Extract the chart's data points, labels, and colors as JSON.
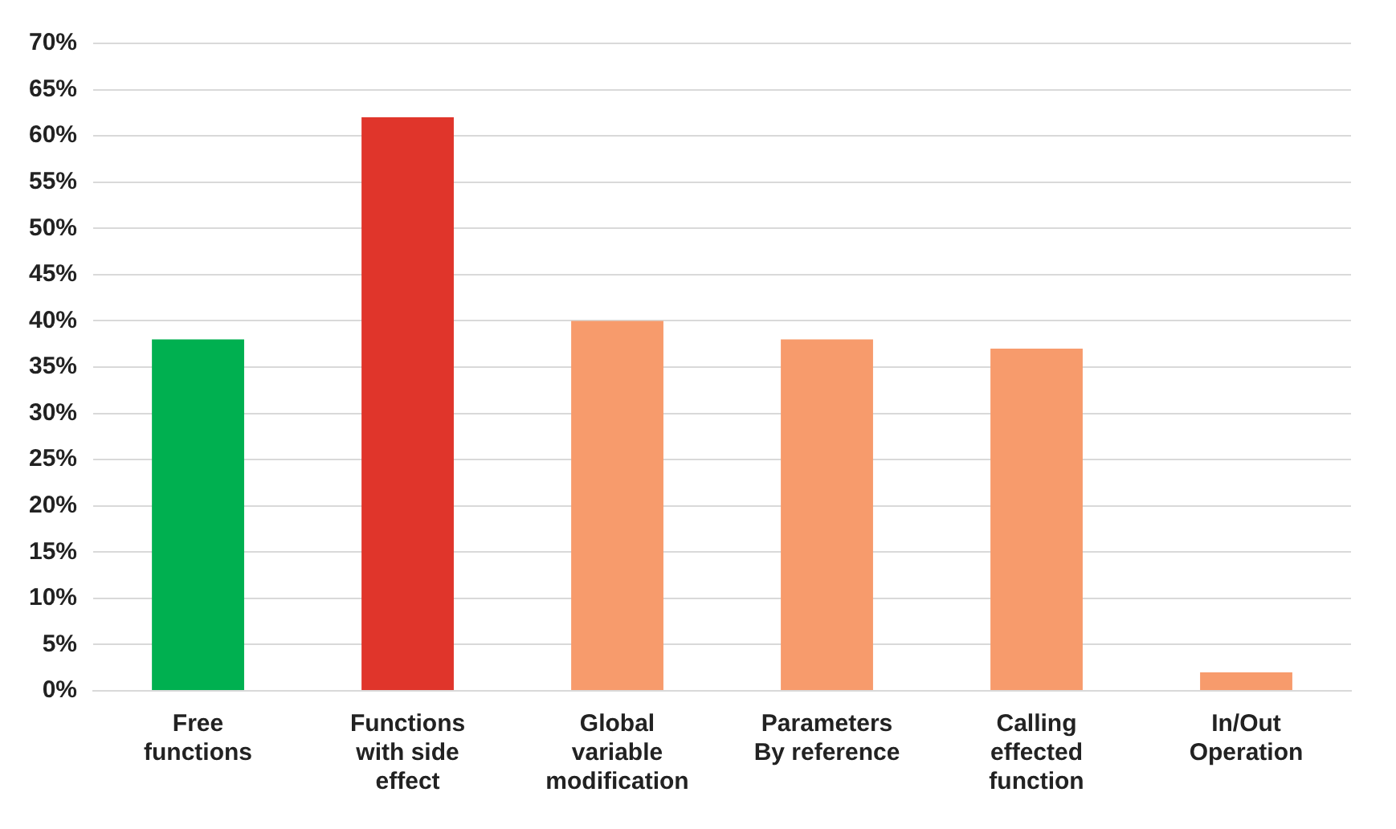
{
  "chart_data": {
    "type": "bar",
    "categories": [
      "Free functions",
      "Functions with side effect",
      "Global variable modification",
      "Parameters By reference",
      "Calling effected function",
      "In/Out Operation"
    ],
    "values": [
      38,
      62,
      40,
      38,
      37,
      2
    ],
    "colors": [
      "#00b050",
      "#e0352b",
      "#f79b6c",
      "#f79b6c",
      "#f79b6c",
      "#f79b6c"
    ],
    "ylim": [
      0,
      70
    ],
    "yticks": [
      {
        "value": 0,
        "label": "0%"
      },
      {
        "value": 5,
        "label": "5%"
      },
      {
        "value": 10,
        "label": "10%"
      },
      {
        "value": 15,
        "label": "15%"
      },
      {
        "value": 20,
        "label": "20%"
      },
      {
        "value": 25,
        "label": "25%"
      },
      {
        "value": 30,
        "label": "30%"
      },
      {
        "value": 35,
        "label": "35%"
      },
      {
        "value": 40,
        "label": "40%"
      },
      {
        "value": 45,
        "label": "45%"
      },
      {
        "value": 50,
        "label": "50%"
      },
      {
        "value": 55,
        "label": "55%"
      },
      {
        "value": 60,
        "label": "60%"
      },
      {
        "value": 65,
        "label": "65%"
      },
      {
        "value": 70,
        "label": "70%"
      }
    ],
    "grid": "y",
    "legend": false
  }
}
